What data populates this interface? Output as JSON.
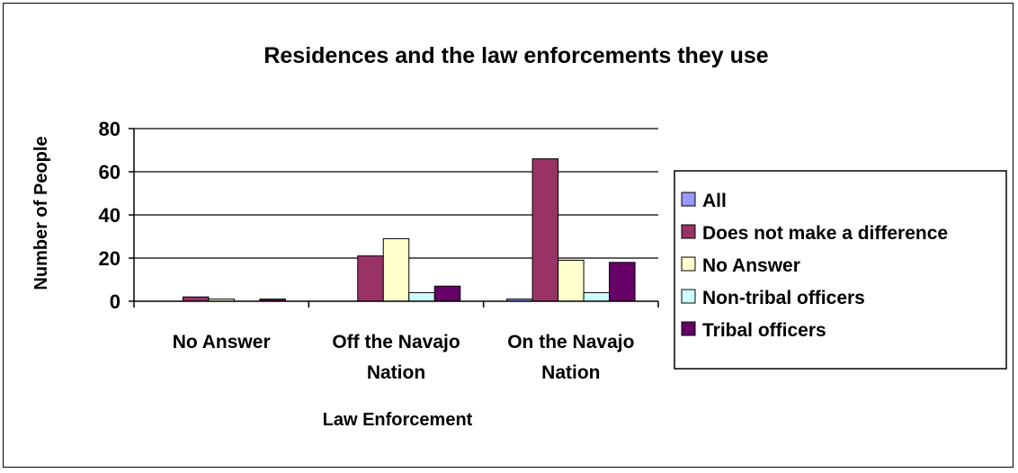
{
  "chart_data": {
    "type": "bar",
    "title": "Residences and the law enforcements they use",
    "xlabel": "Law Enforcement",
    "ylabel": "Number of People",
    "categories": [
      "No Answer",
      "Off the Navajo Nation",
      "On the Navajo Nation"
    ],
    "category_lines": [
      [
        "No Answer"
      ],
      [
        "Off the Navajo",
        "Nation"
      ],
      [
        "On the Navajo",
        "Nation"
      ]
    ],
    "ylim": [
      0,
      80
    ],
    "yticks": [
      0,
      20,
      40,
      60,
      80
    ],
    "grid": true,
    "legend_position": "right",
    "series": [
      {
        "name": "All",
        "color": "#9999ff",
        "values": [
          0,
          0,
          1
        ]
      },
      {
        "name": "Does not make a difference",
        "color": "#993366",
        "values": [
          2,
          21,
          66
        ]
      },
      {
        "name": "No Answer",
        "color": "#ffffcc",
        "values": [
          1,
          29,
          19
        ]
      },
      {
        "name": "Non-tribal officers",
        "color": "#ccffff",
        "values": [
          0,
          4,
          4
        ]
      },
      {
        "name": "Tribal officers",
        "color": "#660066",
        "values": [
          1,
          7,
          18
        ]
      }
    ]
  }
}
